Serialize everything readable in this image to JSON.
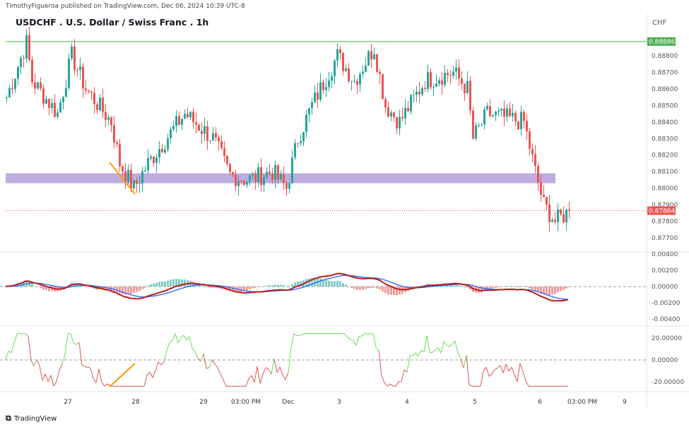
{
  "header": {
    "published": "TimothyFigueroa published on TradingView.com, Dec 06, 2024 10:39 UTC-8",
    "title": "USDCHF . U.S. Dollar / Swiss Franc . 1h",
    "currency": "CHF"
  },
  "footer": {
    "brand": "TradingView"
  },
  "chart_data": {
    "type": "candlestick",
    "symbol": "USDCHF",
    "interval": "1h",
    "price_ticks": [
      "0.88800",
      "0.88700",
      "0.88600",
      "0.88500",
      "0.88400",
      "0.88300",
      "0.88200",
      "0.88100",
      "0.88000",
      "0.87900",
      "0.87800",
      "0.87700"
    ],
    "price_tick_values": [
      0.888,
      0.887,
      0.886,
      0.885,
      0.884,
      0.883,
      0.882,
      0.881,
      0.88,
      0.879,
      0.878,
      0.877
    ],
    "resistance_label": "0.88886",
    "resistance": 0.88886,
    "last_price_label": "0.87864",
    "last_price": 0.87864,
    "support_zone": [
      0.8803,
      0.8809
    ],
    "price_path": [
      [
        0,
        0.8855
      ],
      [
        7,
        0.8888
      ],
      [
        9,
        0.8865
      ],
      [
        18,
        0.8845
      ],
      [
        23,
        0.888
      ],
      [
        28,
        0.886
      ],
      [
        37,
        0.884
      ],
      [
        40,
        0.8815
      ],
      [
        45,
        0.88
      ],
      [
        50,
        0.8815
      ],
      [
        63,
        0.8845
      ],
      [
        73,
        0.883
      ],
      [
        79,
        0.8808
      ],
      [
        85,
        0.8805
      ],
      [
        94,
        0.881
      ],
      [
        99,
        0.88
      ],
      [
        103,
        0.883
      ],
      [
        108,
        0.885
      ],
      [
        117,
        0.888
      ],
      [
        123,
        0.8865
      ],
      [
        130,
        0.8885
      ],
      [
        134,
        0.885
      ],
      [
        139,
        0.884
      ],
      [
        148,
        0.8865
      ],
      [
        158,
        0.887
      ],
      [
        163,
        0.886
      ],
      [
        165,
        0.883
      ],
      [
        170,
        0.8845
      ],
      [
        183,
        0.884
      ],
      [
        187,
        0.881
      ],
      [
        190,
        0.879
      ],
      [
        194,
        0.878
      ],
      [
        199,
        0.8786
      ]
    ],
    "macd_ticks": [
      "0.00400",
      "0.00200",
      "0.00000",
      "-0.00200",
      "-0.00400"
    ],
    "macd_tick_values": [
      0.004,
      0.002,
      0,
      -0.002,
      -0.004
    ],
    "osc_ticks": [
      "20.00000",
      "0.00000",
      "-20.00000"
    ],
    "osc_tick_values": [
      20,
      0,
      -20
    ],
    "time_labels": [
      {
        "label": "27",
        "i": 22
      },
      {
        "label": "28",
        "i": 46
      },
      {
        "label": "29",
        "i": 70
      },
      {
        "label": "03:00 PM",
        "i": 85
      },
      {
        "label": "Dec",
        "i": 100
      },
      {
        "label": "3",
        "i": 118
      },
      {
        "label": "4",
        "i": 142
      },
      {
        "label": "5",
        "i": 166
      },
      {
        "label": "6",
        "i": 189
      },
      {
        "label": "03:00 PM",
        "i": 204
      },
      {
        "label": "9",
        "i": 219
      }
    ],
    "colors": {
      "up": "#26a69a",
      "down": "#ef5350",
      "resistance": "#4caf50",
      "zone": "#b39ddb",
      "trend": "#ff9800",
      "macd": "#2962ff",
      "signal": "#4caf50",
      "signal_down": "#b71c1c"
    }
  }
}
